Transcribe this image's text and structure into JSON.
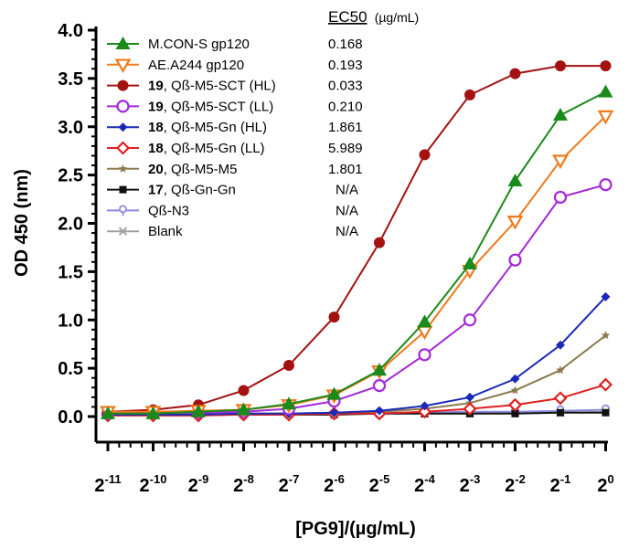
{
  "chart_data": {
    "type": "line",
    "title": "",
    "xlabel": "[PG9]/(µg/mL)",
    "ylabel": "OD 450 (nm)",
    "x_base": "2",
    "x_exponents": [
      "-11",
      "-10",
      "-9",
      "-8",
      "-7",
      "-6",
      "-5",
      "-4",
      "-3",
      "-2",
      "-1",
      "0"
    ],
    "ylim": [
      0,
      4.0
    ],
    "y_ticks": [
      "0.0",
      "0.5",
      "1.0",
      "1.5",
      "2.0",
      "2.5",
      "3.0",
      "3.5",
      "4.0"
    ],
    "ec50_header": "EC50",
    "ec50_unit": "(µg/mL)",
    "legend_position": "top-left",
    "series": [
      {
        "name": "M.CON-S gp120",
        "compound": "",
        "color": "#1a8a1a",
        "marker": "triangle",
        "ec50": "0.168",
        "values": [
          0.03,
          0.03,
          0.05,
          0.07,
          0.13,
          0.23,
          0.48,
          0.98,
          1.58,
          2.44,
          3.12,
          3.36
        ]
      },
      {
        "name": "AE.A244 gp120",
        "compound": "",
        "color": "#f07a1c",
        "marker": "triangle-down",
        "ec50": "0.193",
        "values": [
          0.05,
          0.05,
          0.06,
          0.07,
          0.12,
          0.22,
          0.47,
          0.88,
          1.51,
          2.02,
          2.65,
          3.11
        ]
      },
      {
        "name": ", Qß-M5-SCT (HL)",
        "compound": "19",
        "color": "#a31111",
        "marker": "circle",
        "ec50": "0.033",
        "values": [
          0.05,
          0.07,
          0.12,
          0.27,
          0.53,
          1.03,
          1.8,
          2.71,
          3.33,
          3.55,
          3.63,
          3.63
        ]
      },
      {
        "name": ", Qß-M5-SCT (LL)",
        "compound": "19",
        "color": "#a428d8",
        "marker": "circle-open",
        "ec50": "0.210",
        "values": [
          0.03,
          0.04,
          0.04,
          0.05,
          0.08,
          0.16,
          0.32,
          0.64,
          1.0,
          1.62,
          2.27,
          2.4
        ]
      },
      {
        "name": ", Qß-M5-Gn (HL)",
        "compound": "18",
        "color": "#1a2ab8",
        "marker": "diamond",
        "ec50": "1.861",
        "values": [
          0.02,
          0.02,
          0.02,
          0.03,
          0.03,
          0.04,
          0.06,
          0.11,
          0.2,
          0.39,
          0.74,
          1.24
        ]
      },
      {
        "name": ", Qß-M5-Gn (LL)",
        "compound": "18",
        "color": "#e02020",
        "marker": "diamond-open",
        "ec50": "5.989",
        "values": [
          0.01,
          0.01,
          0.01,
          0.02,
          0.02,
          0.03,
          0.03,
          0.05,
          0.08,
          0.12,
          0.19,
          0.33
        ]
      },
      {
        "name": ", Qß-M5-M5",
        "compound": "20",
        "color": "#8c7a4f",
        "marker": "star",
        "ec50": "1.801",
        "values": [
          0.02,
          0.02,
          0.02,
          0.03,
          0.03,
          0.04,
          0.05,
          0.08,
          0.14,
          0.27,
          0.48,
          0.84
        ]
      },
      {
        "name": ", Qß-Gn-Gn",
        "compound": "17",
        "color": "#111111",
        "marker": "square",
        "ec50": "N/A",
        "values": [
          0.02,
          0.02,
          0.02,
          0.02,
          0.02,
          0.02,
          0.03,
          0.03,
          0.03,
          0.03,
          0.04,
          0.04
        ]
      },
      {
        "name": "Qß-N3",
        "compound": "",
        "color": "#8a8ae0",
        "marker": "pin",
        "ec50": "N/A",
        "values": [
          0.02,
          0.02,
          0.02,
          0.03,
          0.03,
          0.03,
          0.04,
          0.04,
          0.05,
          0.05,
          0.06,
          0.07
        ]
      },
      {
        "name": "Blank",
        "compound": "",
        "color": "#a0a0a0",
        "marker": "x",
        "ec50": "N/A",
        "values": [
          0.02,
          0.02,
          0.02,
          0.02,
          0.02,
          0.02,
          0.03,
          0.03,
          0.03,
          0.04,
          0.04,
          0.05
        ]
      }
    ]
  }
}
